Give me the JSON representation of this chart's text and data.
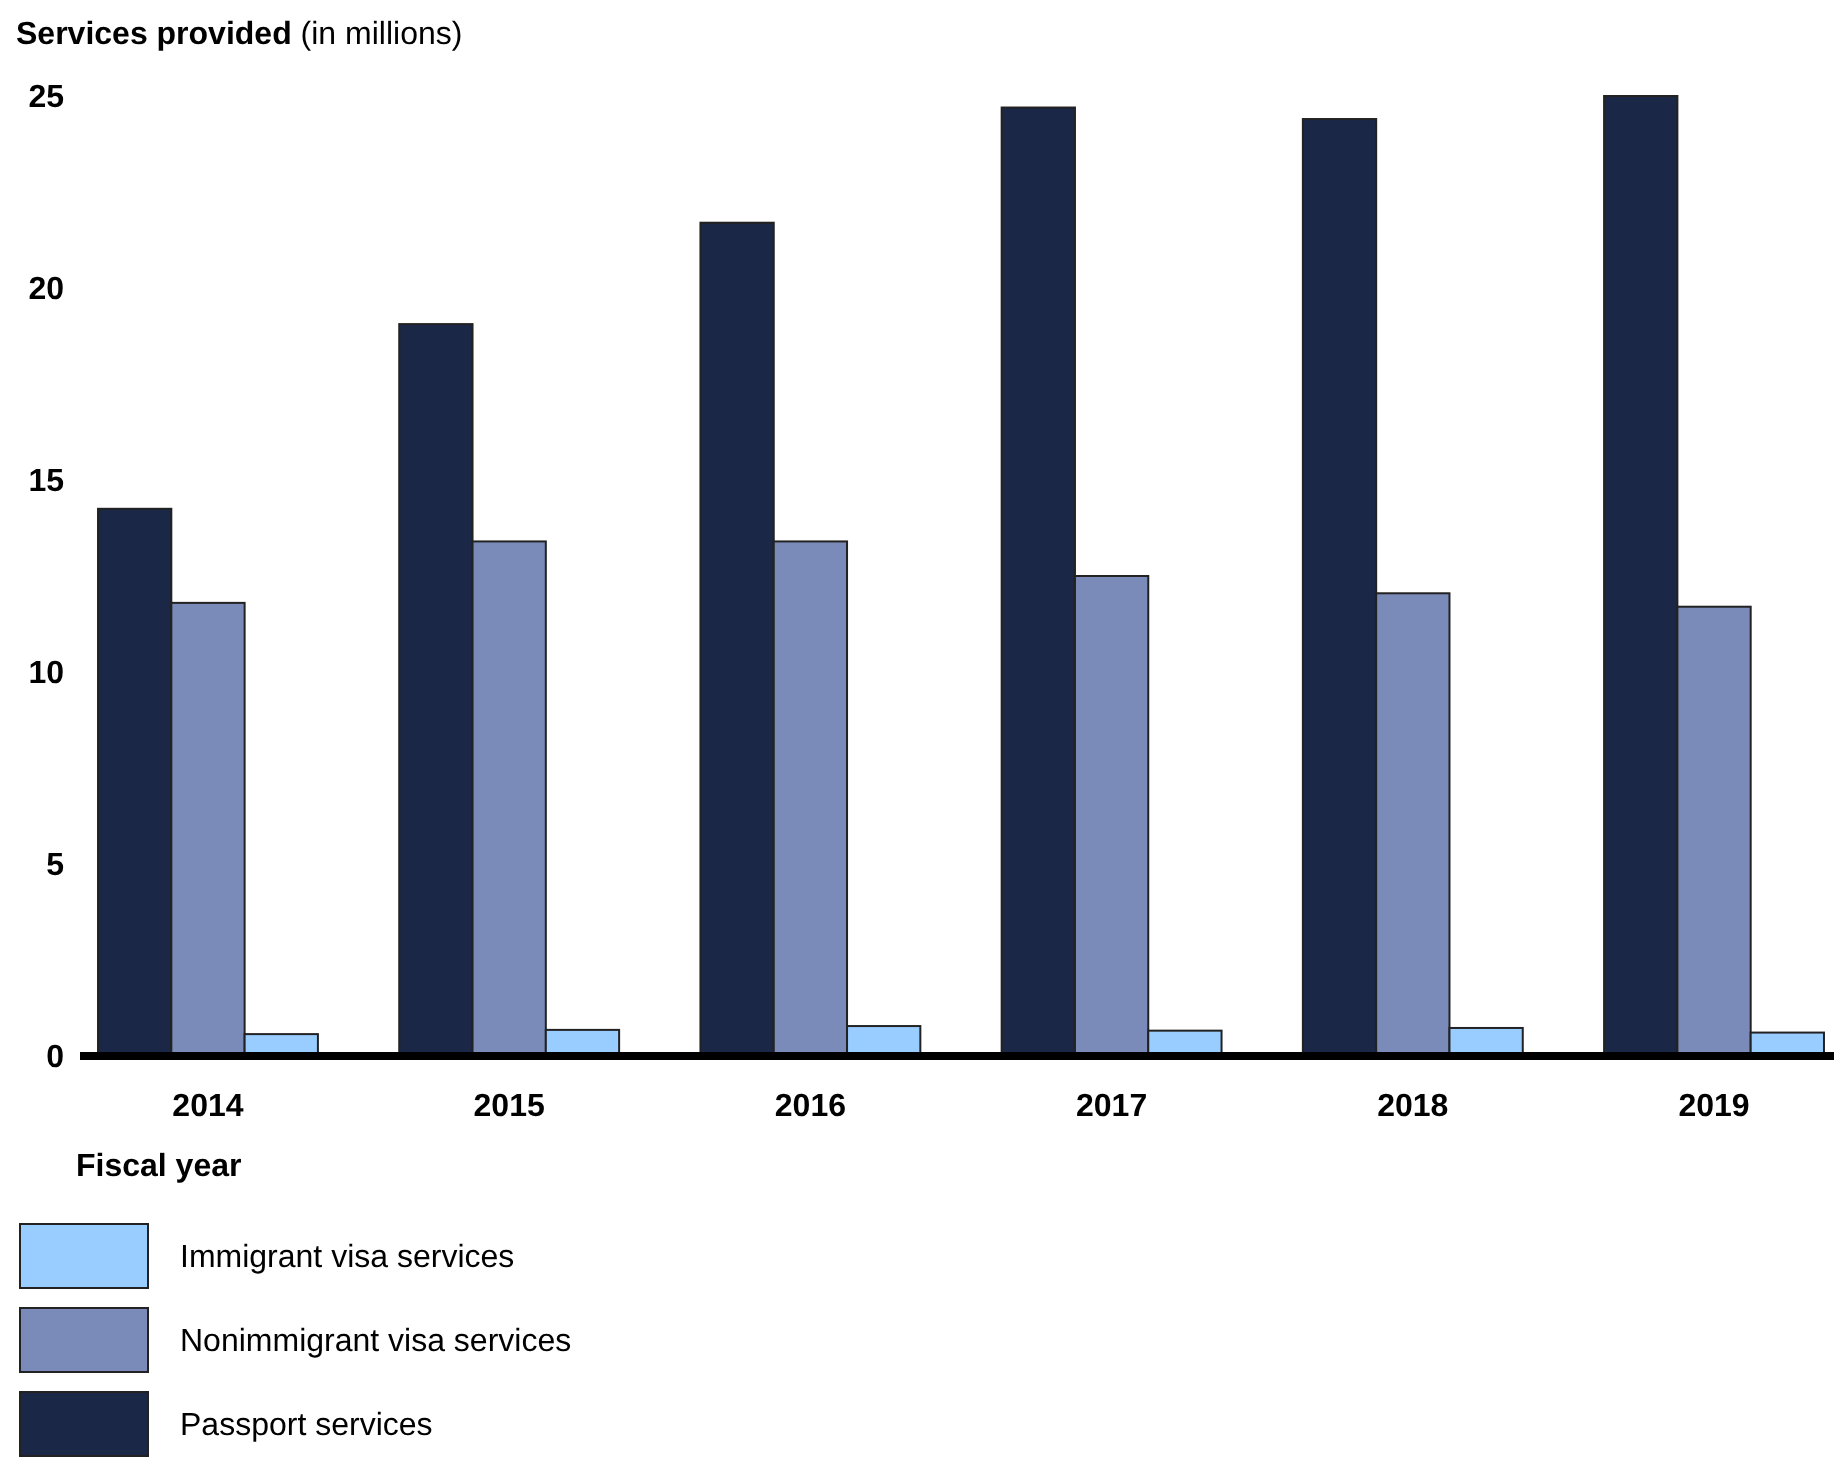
{
  "chart_data": {
    "type": "bar",
    "ylabel": "Services provided (in millions)",
    "xlabel": "Fiscal year",
    "categories": [
      "2014",
      "2015",
      "2016",
      "2017",
      "2018",
      "2019"
    ],
    "series": [
      {
        "name": "Passport services",
        "color": "#1a2747",
        "values": [
          14.25,
          19.06,
          21.7,
          24.7,
          24.4,
          25.0
        ]
      },
      {
        "name": "Nonimmigrant visa services",
        "color": "#7a8bba",
        "values": [
          11.8,
          13.4,
          13.4,
          12.5,
          12.05,
          11.7
        ]
      },
      {
        "name": "Immigrant visa services",
        "color": "#99ccff",
        "values": [
          0.57,
          0.68,
          0.78,
          0.66,
          0.73,
          0.61
        ]
      }
    ],
    "ylim": [
      0,
      25
    ],
    "yticks": [
      0,
      5,
      10,
      15,
      20,
      25
    ],
    "legend": "bottom left"
  }
}
